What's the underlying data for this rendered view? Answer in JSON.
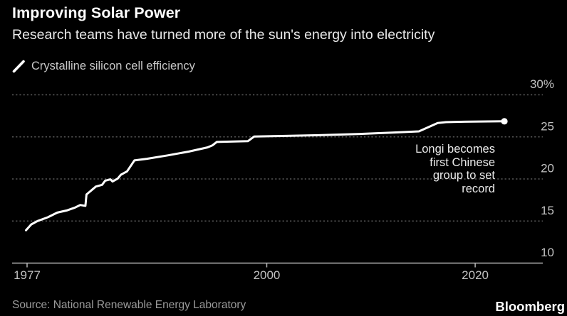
{
  "header": {
    "title": "Improving Solar Power",
    "subtitle": "Research teams have turned more of the sun's energy into electricity"
  },
  "legend": {
    "marker_icon": "diagonal-line-series-marker",
    "label": "Crystalline silicon cell efficiency"
  },
  "annotation": {
    "lines": [
      "Longi becomes",
      "first Chinese",
      "group to set",
      "record"
    ]
  },
  "footer": {
    "source": "Source: National Renewable Energy Laboratory",
    "brand": "Bloomberg"
  },
  "colors": {
    "background": "#000000",
    "title_text": "#ffffff",
    "subtitle_text": "#e9e9e9",
    "legend_text": "#c8c8c8",
    "axis_text": "#c2c2c2",
    "gridline": "#565656",
    "axis_line": "#b5b5b5",
    "series_line": "#ffffff",
    "annotation_text": "#eaeaea",
    "source_text": "#9b9b9b",
    "brand_text": "#ffffff"
  },
  "chart_data": {
    "type": "line",
    "title": "Improving Solar Power",
    "subtitle": "Research teams have turned more of the sun's energy into electricity",
    "units": "% efficiency",
    "series": [
      {
        "name": "Crystalline silicon cell efficiency",
        "points": [
          [
            1976.9,
            13.9
          ],
          [
            1977.4,
            14.6
          ],
          [
            1978.0,
            15.0
          ],
          [
            1979.0,
            15.45
          ],
          [
            1979.9,
            16.0
          ],
          [
            1980.8,
            16.25
          ],
          [
            1981.6,
            16.6
          ],
          [
            1982.1,
            16.9
          ],
          [
            1982.6,
            16.8
          ],
          [
            1982.7,
            18.15
          ],
          [
            1983.6,
            19.1
          ],
          [
            1984.2,
            19.3
          ],
          [
            1984.5,
            19.8
          ],
          [
            1985.0,
            19.95
          ],
          [
            1985.2,
            19.7
          ],
          [
            1985.7,
            20.05
          ],
          [
            1986.0,
            20.5
          ],
          [
            1986.6,
            20.9
          ],
          [
            1987.3,
            22.2
          ],
          [
            1988.5,
            22.4
          ],
          [
            1990.5,
            22.8
          ],
          [
            1992.5,
            23.25
          ],
          [
            1994.3,
            23.75
          ],
          [
            1994.8,
            24.0
          ],
          [
            1995.2,
            24.4
          ],
          [
            1998.2,
            24.5
          ],
          [
            1998.8,
            25.05
          ],
          [
            2001.0,
            25.1
          ],
          [
            2005.0,
            25.2
          ],
          [
            2009.0,
            25.35
          ],
          [
            2012.0,
            25.5
          ],
          [
            2014.6,
            25.65
          ],
          [
            2016.4,
            26.65
          ],
          [
            2017.2,
            26.75
          ],
          [
            2019.0,
            26.8
          ],
          [
            2022.8,
            26.85
          ]
        ]
      }
    ],
    "yticks": [
      30,
      25,
      20,
      15,
      10
    ],
    "ytick_labels": [
      "30%",
      "25",
      "20",
      "15",
      "10"
    ],
    "xticks": [
      1977,
      2000,
      2020
    ],
    "xtick_labels": [
      "1977",
      "2000",
      "2020"
    ],
    "ylim": [
      10,
      30
    ],
    "xlim": [
      1975.6,
      2026.5
    ],
    "grid": "horizontal-dotted",
    "legend_position": "top-left",
    "annotation": "Longi becomes first Chinese group to set record",
    "end_marker": true
  }
}
